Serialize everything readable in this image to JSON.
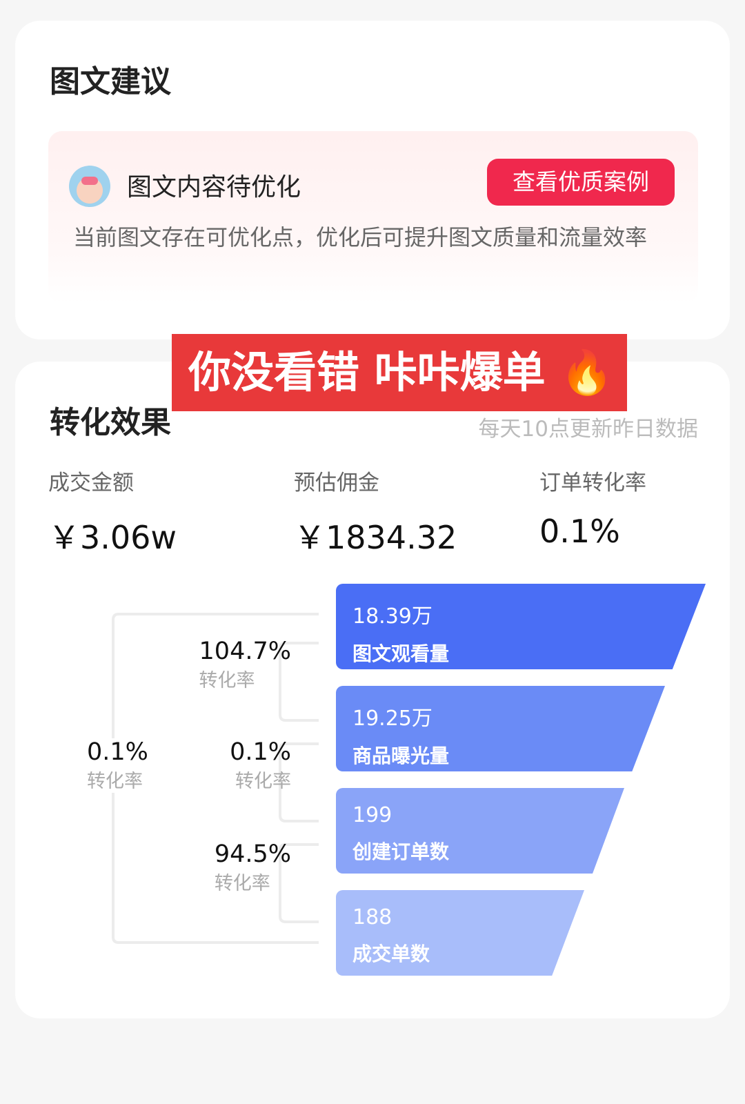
{
  "suggestion": {
    "title": "图文建议",
    "tip_title": "图文内容待优化",
    "button": "查看优质案例",
    "description": "当前图文存在可优化点，优化后可提升图文质量和流量效率"
  },
  "banner": {
    "text": "你没看错 咔咔爆单",
    "icon": "fire-icon"
  },
  "conversion": {
    "title": "转化效果",
    "update_note": "每天10点更新昨日数据",
    "metrics": [
      {
        "label": "成交金额",
        "value": "￥3.06w"
      },
      {
        "label": "预估佣金",
        "value": "￥1834.32"
      },
      {
        "label": "订单转化率",
        "value": "0.1%"
      }
    ],
    "funnel": [
      {
        "value": "18.39万",
        "label": "图文观看量",
        "color": "#4a6ef5"
      },
      {
        "value": "19.25万",
        "label": "商品曝光量",
        "color": "#6a8bf6"
      },
      {
        "value": "199",
        "label": "创建订单数",
        "color": "#8aa4f8"
      },
      {
        "value": "188",
        "label": "成交单数",
        "color": "#a8bdfa"
      }
    ],
    "rates": [
      {
        "value": "104.7%",
        "label": "转化率"
      },
      {
        "value": "0.1%",
        "label": "转化率"
      },
      {
        "value": "94.5%",
        "label": "转化率"
      },
      {
        "value": "0.1%",
        "label": "转化率"
      }
    ]
  }
}
